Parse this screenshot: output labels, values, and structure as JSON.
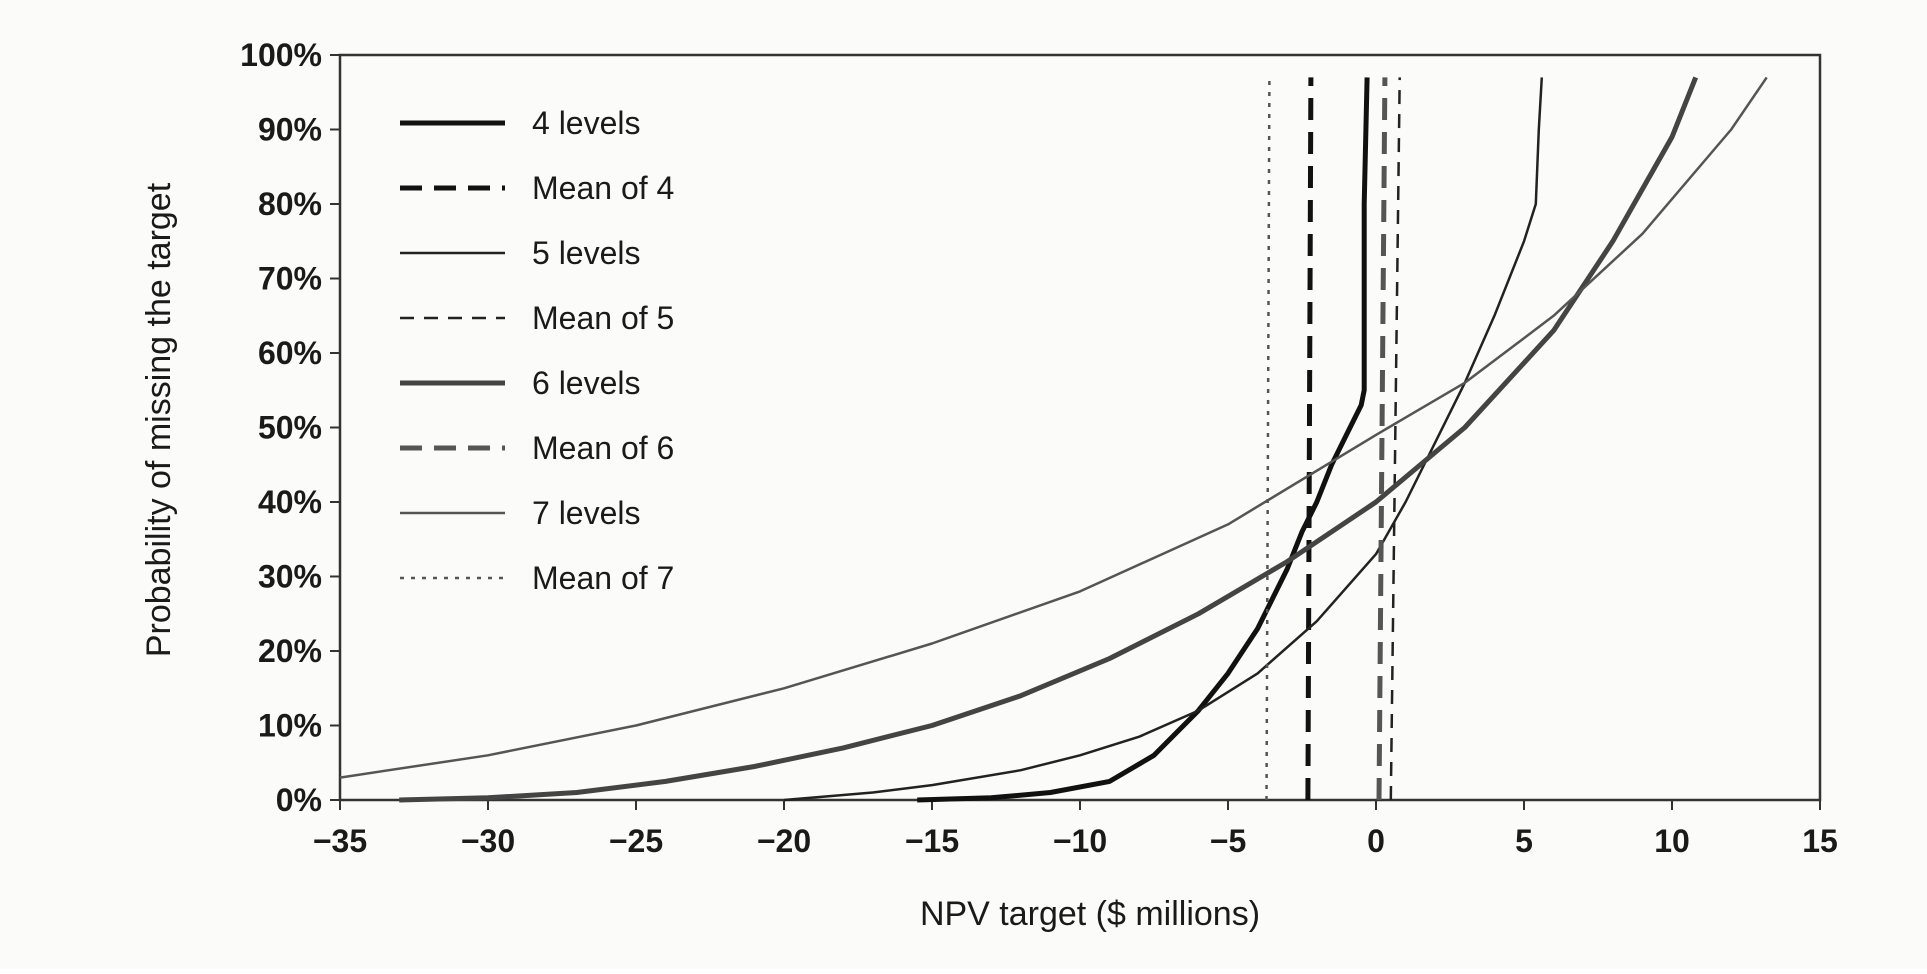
{
  "chart_data": {
    "type": "line",
    "title": "",
    "xlabel": "NPV target ($ millions)",
    "ylabel": "Probability of missing the target",
    "xlim": [
      -35,
      15
    ],
    "ylim": [
      0,
      100
    ],
    "x_ticks": [
      -35,
      -30,
      -25,
      -20,
      -15,
      -10,
      -5,
      0,
      5,
      10,
      15
    ],
    "x_tick_labels": [
      "−35",
      "−30",
      "−25",
      "−20",
      "−15",
      "−10",
      "−5",
      "0",
      "5",
      "10",
      "15"
    ],
    "y_ticks": [
      0,
      10,
      20,
      30,
      40,
      50,
      60,
      70,
      80,
      90,
      100
    ],
    "y_tick_labels": [
      "0%",
      "10%",
      "20%",
      "30%",
      "40%",
      "50%",
      "60%",
      "70%",
      "80%",
      "90%",
      "100%"
    ],
    "grid": false,
    "legend_position": "top-left",
    "series": [
      {
        "name": "4 levels",
        "style": "solid",
        "weight": "heavy",
        "color": "#111111",
        "x": [
          -15.5,
          -13,
          -11,
          -9,
          -7.5,
          -6,
          -5,
          -4,
          -3,
          -2.5,
          -2,
          -1.5,
          -1,
          -0.5,
          -0.4,
          -0.4,
          -0.3
        ],
        "y": [
          0,
          0.3,
          1,
          2.5,
          6,
          12,
          17,
          23,
          31,
          36,
          40,
          45,
          49,
          53,
          55,
          80,
          97
        ]
      },
      {
        "name": "Mean of 4",
        "style": "dashed",
        "weight": "heavy",
        "color": "#111111",
        "x": [
          -2.3,
          -2.2
        ],
        "y": [
          0,
          97
        ]
      },
      {
        "name": "5 levels",
        "style": "solid",
        "weight": "light",
        "color": "#222222",
        "x": [
          -20,
          -17,
          -15,
          -12,
          -10,
          -8,
          -6,
          -4,
          -2,
          0,
          1,
          2,
          3,
          4,
          5,
          5.4,
          5.5,
          5.6
        ],
        "y": [
          0,
          1,
          2,
          4,
          6,
          8.5,
          12,
          17,
          24,
          33,
          40,
          48,
          56,
          65,
          75,
          80,
          90,
          97
        ]
      },
      {
        "name": "Mean of 5",
        "style": "dashed",
        "weight": "light",
        "color": "#222222",
        "x": [
          0.5,
          0.8
        ],
        "y": [
          0,
          97
        ]
      },
      {
        "name": "6 levels",
        "style": "solid",
        "weight": "heavy",
        "color": "#444444",
        "x": [
          -33,
          -30,
          -27,
          -24,
          -21,
          -18,
          -15,
          -12,
          -9,
          -6,
          -3,
          0,
          3,
          6,
          8,
          10,
          10.8
        ],
        "y": [
          0,
          0.3,
          1,
          2.5,
          4.5,
          7,
          10,
          14,
          19,
          25,
          32,
          40,
          50,
          63,
          75,
          89,
          97
        ]
      },
      {
        "name": "Mean of 6",
        "style": "dashed",
        "weight": "heavy",
        "color": "#555555",
        "x": [
          0.1,
          0.3
        ],
        "y": [
          0,
          97
        ]
      },
      {
        "name": "7 levels",
        "style": "solid",
        "weight": "light",
        "color": "#555555",
        "x": [
          -35,
          -30,
          -25,
          -20,
          -15,
          -10,
          -5,
          0,
          3,
          6,
          9,
          12,
          13.2
        ],
        "y": [
          3,
          6,
          10,
          15,
          21,
          28,
          37,
          49,
          56,
          65,
          76,
          90,
          97
        ]
      },
      {
        "name": "Mean of 7",
        "style": "dotted",
        "weight": "light",
        "color": "#555555",
        "x": [
          -3.7,
          -3.6
        ],
        "y": [
          0,
          97
        ]
      }
    ]
  }
}
